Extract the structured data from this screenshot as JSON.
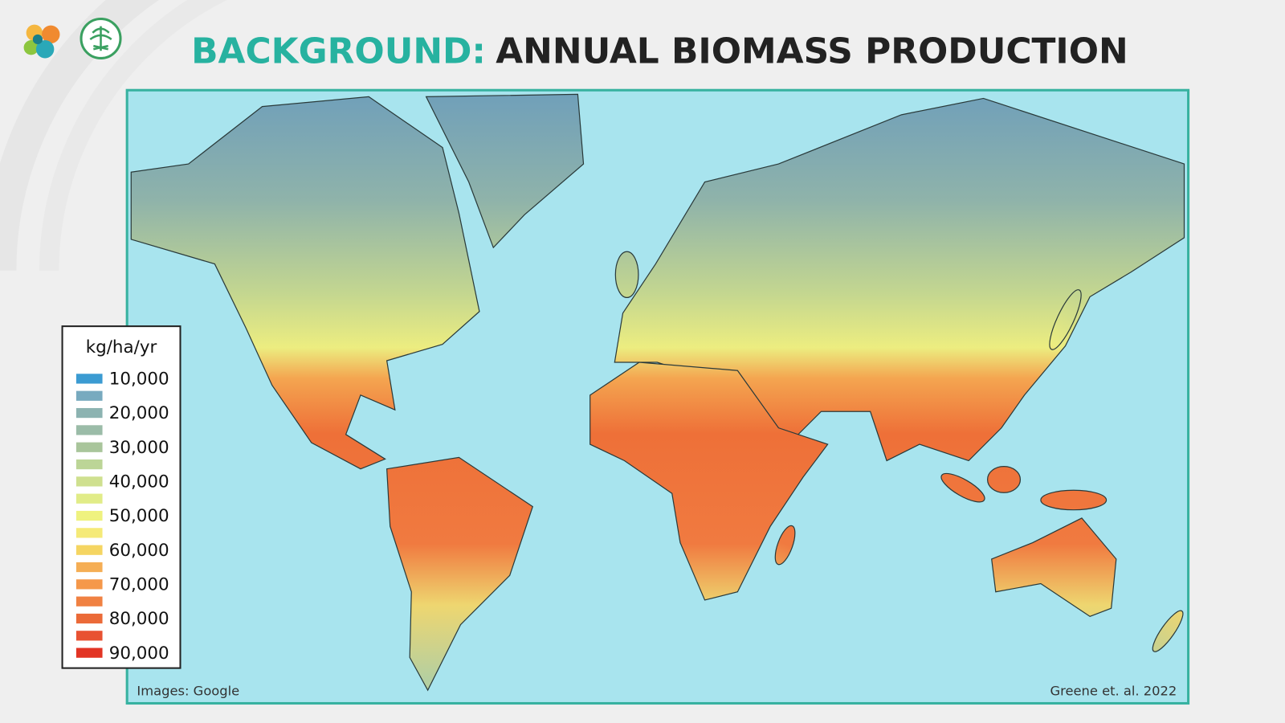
{
  "header": {
    "title_lead": "BACKGROUND:",
    "title_rest": "ANNUAL BIOMASS PRODUCTION"
  },
  "legend": {
    "title": "kg/ha/yr",
    "items": [
      {
        "label": "10,000",
        "color": "#3b9bd2"
      },
      {
        "label": null,
        "color": "#78aabf"
      },
      {
        "label": "20,000",
        "color": "#8cb3b1"
      },
      {
        "label": null,
        "color": "#9bbca8"
      },
      {
        "label": "30,000",
        "color": "#a9c59b"
      },
      {
        "label": null,
        "color": "#bcd597"
      },
      {
        "label": "40,000",
        "color": "#cfe08f"
      },
      {
        "label": null,
        "color": "#e1ec88"
      },
      {
        "label": "50,000",
        "color": "#eff27f"
      },
      {
        "label": null,
        "color": "#f5ea78"
      },
      {
        "label": "60,000",
        "color": "#f5d562"
      },
      {
        "label": null,
        "color": "#f5ae55"
      },
      {
        "label": "70,000",
        "color": "#f5984a"
      },
      {
        "label": null,
        "color": "#f08142"
      },
      {
        "label": "80,000",
        "color": "#eb6a38"
      },
      {
        "label": null,
        "color": "#e85232"
      },
      {
        "label": "90,000",
        "color": "#e23424"
      }
    ]
  },
  "credits": {
    "left": "Images: Google",
    "right": "Greene et. al. 2022"
  }
}
